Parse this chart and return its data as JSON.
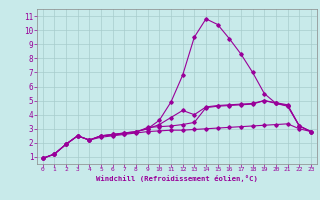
{
  "xlabel": "Windchill (Refroidissement éolien,°C)",
  "bg_color": "#c8eaea",
  "grid_color": "#a8cccc",
  "line_color": "#990099",
  "xlim": [
    -0.5,
    23.5
  ],
  "ylim": [
    0.5,
    11.5
  ],
  "xticks": [
    0,
    1,
    2,
    3,
    4,
    5,
    6,
    7,
    8,
    9,
    10,
    11,
    12,
    13,
    14,
    15,
    16,
    17,
    18,
    19,
    20,
    21,
    22,
    23
  ],
  "yticks": [
    1,
    2,
    3,
    4,
    5,
    6,
    7,
    8,
    9,
    10,
    11
  ],
  "series": [
    [
      0.9,
      1.2,
      1.9,
      2.5,
      2.2,
      2.5,
      2.6,
      2.7,
      2.8,
      3.0,
      3.3,
      3.8,
      4.3,
      4.0,
      4.55,
      4.65,
      4.7,
      4.75,
      4.8,
      5.0,
      4.85,
      4.7,
      3.2,
      2.8
    ],
    [
      0.9,
      1.2,
      1.9,
      2.5,
      2.2,
      2.5,
      2.55,
      2.65,
      2.75,
      3.1,
      3.15,
      3.2,
      3.3,
      3.45,
      4.5,
      4.6,
      4.65,
      4.7,
      4.75,
      5.0,
      4.8,
      4.65,
      3.2,
      2.8
    ],
    [
      0.9,
      1.2,
      1.9,
      2.5,
      2.2,
      2.4,
      2.5,
      2.6,
      2.7,
      2.8,
      2.85,
      2.9,
      2.9,
      2.95,
      3.0,
      3.05,
      3.1,
      3.15,
      3.2,
      3.25,
      3.3,
      3.35,
      3.0,
      2.8
    ],
    [
      0.9,
      1.2,
      1.9,
      2.5,
      2.2,
      2.5,
      2.6,
      2.7,
      2.8,
      3.0,
      3.6,
      4.9,
      6.8,
      9.5,
      10.8,
      10.4,
      9.4,
      8.3,
      7.0,
      5.5,
      4.8,
      4.6,
      3.2,
      2.8
    ]
  ]
}
